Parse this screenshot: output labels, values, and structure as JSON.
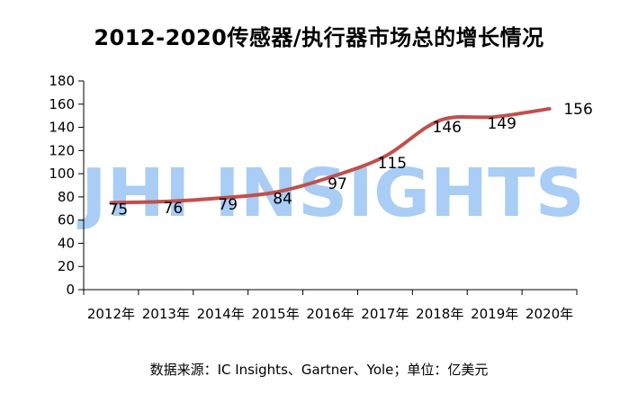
{
  "watermark": {
    "text": "JHI INSIGHTS",
    "color": "#a9cdf5"
  },
  "source_note": "数据来源：IC Insights、Gartner、Yole；单位：亿美元",
  "chart_data": {
    "type": "line",
    "title": "2012-2020传感器/执行器市场总的增长情况",
    "categories": [
      "2012年",
      "2013年",
      "2014年",
      "2015年",
      "2016年",
      "2017年",
      "2018年",
      "2019年",
      "2020年"
    ],
    "series": [
      {
        "values": [
          75,
          76,
          79,
          84,
          97,
          115,
          146,
          149,
          156
        ],
        "color": "#c0504d"
      }
    ],
    "ylim": [
      0,
      180
    ],
    "yticks": [
      0,
      20,
      40,
      60,
      80,
      100,
      120,
      140,
      160,
      180
    ],
    "grid": false,
    "legend": "none",
    "data_labels": true
  }
}
